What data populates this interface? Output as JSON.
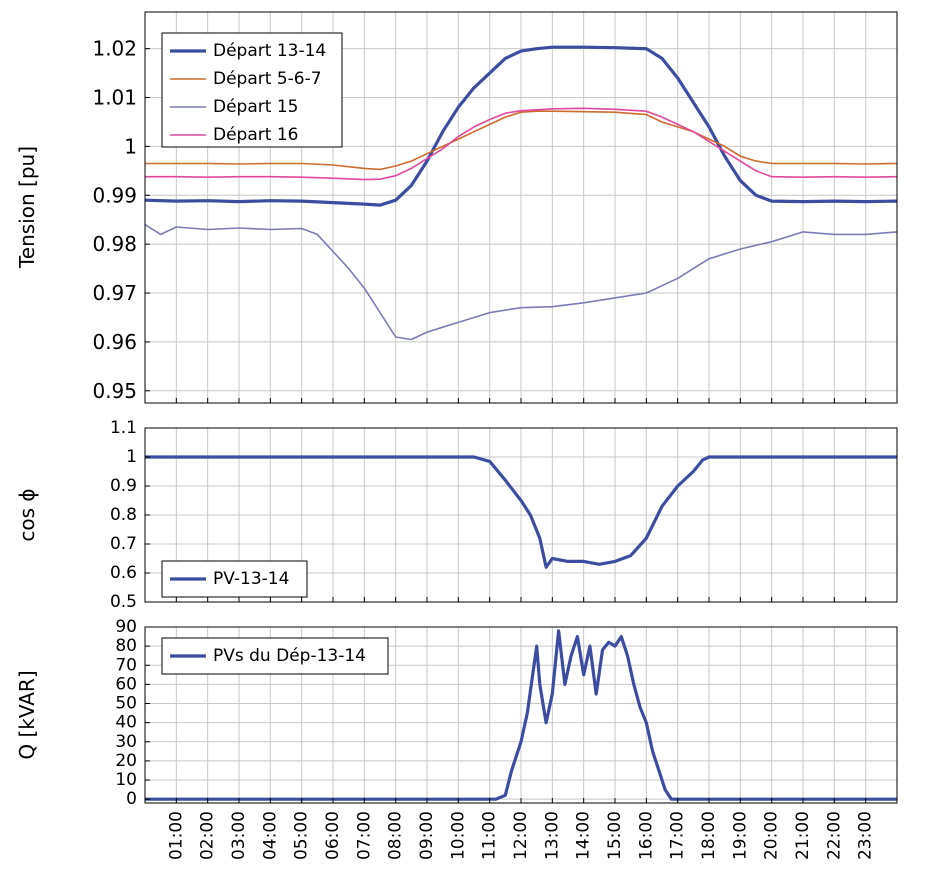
{
  "chart_data": [
    {
      "type": "line",
      "ylabel": "Tension [pu]",
      "xlabel": "",
      "xlim": [
        0,
        24
      ],
      "ylim": [
        0.9475,
        1.0275
      ],
      "yticks": [
        "0.95",
        "0.96",
        "0.97",
        "0.98",
        "0.99",
        "1",
        "1.01",
        "1.02"
      ],
      "ytick_values": [
        0.95,
        0.96,
        0.97,
        0.98,
        0.99,
        1,
        1.01,
        1.02
      ],
      "grid": true,
      "legend_position": "top-left",
      "series": [
        {
          "name": "Départ 13-14",
          "color": "#3b4da0",
          "thick": true,
          "x": [
            0,
            1,
            2,
            3,
            4,
            5,
            6,
            7,
            7.5,
            8,
            8.5,
            9,
            9.5,
            10,
            10.5,
            11,
            11.5,
            12,
            12.5,
            13,
            14,
            15,
            16,
            16.5,
            17,
            17.5,
            18,
            18.5,
            19,
            19.5,
            20,
            21,
            22,
            23,
            24
          ],
          "y": [
            0.989,
            0.9888,
            0.9889,
            0.9887,
            0.9889,
            0.9888,
            0.9885,
            0.9882,
            0.988,
            0.989,
            0.992,
            0.997,
            1.003,
            1.008,
            1.012,
            1.015,
            1.018,
            1.0195,
            1.02,
            1.0203,
            1.0203,
            1.0202,
            1.02,
            1.018,
            1.014,
            1.009,
            1.004,
            0.998,
            0.993,
            0.99,
            0.9888,
            0.9887,
            0.9888,
            0.9887,
            0.9888
          ]
        },
        {
          "name": "Départ 5-6-7",
          "color": "#cc6b2c",
          "thick": false,
          "x": [
            0,
            1,
            2,
            3,
            4,
            5,
            6,
            7,
            7.5,
            8,
            8.5,
            9,
            9.5,
            10,
            10.5,
            11,
            11.5,
            12,
            12.5,
            13,
            14,
            15,
            16,
            16.5,
            17,
            17.5,
            18,
            18.5,
            19,
            19.5,
            20,
            21,
            22,
            23,
            24
          ],
          "y": [
            0.9965,
            0.9965,
            0.9965,
            0.9964,
            0.9965,
            0.9965,
            0.9962,
            0.9955,
            0.9953,
            0.996,
            0.997,
            0.9985,
            1.0,
            1.0015,
            1.003,
            1.0045,
            1.006,
            1.007,
            1.0072,
            1.0072,
            1.0071,
            1.007,
            1.0065,
            1.005,
            1.004,
            1.003,
            1.0015,
            1.0,
            0.998,
            0.997,
            0.9965,
            0.9965,
            0.9965,
            0.9964,
            0.9965
          ]
        },
        {
          "name": "Départ 15",
          "color": "#7b7bb8",
          "thick": false,
          "x": [
            0,
            0.5,
            1,
            2,
            3,
            4,
            5,
            5.5,
            6,
            6.5,
            7,
            7.5,
            8,
            8.5,
            9,
            9.5,
            10,
            11,
            12,
            13,
            14,
            15,
            16,
            16.5,
            17,
            17.5,
            18,
            19,
            20,
            21,
            22,
            23,
            24
          ],
          "y": [
            0.984,
            0.982,
            0.9835,
            0.983,
            0.9833,
            0.983,
            0.9832,
            0.982,
            0.9785,
            0.975,
            0.971,
            0.966,
            0.961,
            0.9605,
            0.962,
            0.963,
            0.964,
            0.966,
            0.967,
            0.9672,
            0.968,
            0.969,
            0.97,
            0.9715,
            0.973,
            0.975,
            0.977,
            0.979,
            0.9805,
            0.9825,
            0.982,
            0.982,
            0.9825
          ]
        },
        {
          "name": "Départ 16",
          "color": "#e0479e",
          "thick": false,
          "x": [
            0,
            1,
            2,
            3,
            4,
            5,
            6,
            7,
            7.5,
            8,
            8.5,
            9,
            9.5,
            10,
            10.5,
            11,
            11.5,
            12,
            12.5,
            13,
            14,
            15,
            16,
            16.5,
            17,
            17.5,
            18,
            18.5,
            19,
            19.5,
            20,
            21,
            22,
            23,
            24
          ],
          "y": [
            0.9938,
            0.9938,
            0.9937,
            0.9938,
            0.9938,
            0.9937,
            0.9935,
            0.9932,
            0.9933,
            0.994,
            0.9955,
            0.9975,
            0.9995,
            1.002,
            1.004,
            1.0055,
            1.0068,
            1.0073,
            1.0075,
            1.0077,
            1.0078,
            1.0076,
            1.0072,
            1.006,
            1.0045,
            1.003,
            1.001,
            0.999,
            0.997,
            0.995,
            0.9938,
            0.9937,
            0.9938,
            0.9937,
            0.9938
          ]
        }
      ]
    },
    {
      "type": "line",
      "ylabel": "cos ϕ",
      "xlabel": "",
      "xlim": [
        0,
        24
      ],
      "ylim": [
        0.5,
        1.1
      ],
      "yticks": [
        "0.5",
        "0.6",
        "0.7",
        "0.8",
        "0.9",
        "1",
        "1.1"
      ],
      "ytick_values": [
        0.5,
        0.6,
        0.7,
        0.8,
        0.9,
        1,
        1.1
      ],
      "grid": true,
      "legend_position": "bottom-left",
      "series": [
        {
          "name": "PV-13-14",
          "color": "#3b4da0",
          "thick": true,
          "x": [
            0,
            5,
            10,
            10.5,
            11,
            11.5,
            12,
            12.3,
            12.6,
            12.8,
            13,
            13.5,
            14,
            14.5,
            15,
            15.5,
            16,
            16.5,
            17,
            17.5,
            17.8,
            18,
            24
          ],
          "y": [
            1,
            1,
            1,
            1,
            0.985,
            0.92,
            0.85,
            0.8,
            0.72,
            0.62,
            0.65,
            0.64,
            0.64,
            0.63,
            0.64,
            0.66,
            0.72,
            0.83,
            0.9,
            0.95,
            0.99,
            1,
            1
          ]
        }
      ]
    },
    {
      "type": "line",
      "ylabel": "Q [kVAR]",
      "xlabel": "",
      "xlim": [
        0,
        24
      ],
      "ylim": [
        -2,
        90
      ],
      "yticks": [
        "0",
        "10",
        "20",
        "30",
        "40",
        "50",
        "60",
        "70",
        "80",
        "90"
      ],
      "ytick_values": [
        0,
        10,
        20,
        30,
        40,
        50,
        60,
        70,
        80,
        90
      ],
      "grid": true,
      "legend_position": "top-left",
      "x_categories": [
        "01:00",
        "02:00",
        "03:00",
        "04:00",
        "05:00",
        "06:00",
        "07:00",
        "08:00",
        "09:00",
        "10:00",
        "11:00",
        "12:00",
        "13:00",
        "14:00",
        "15:00",
        "16:00",
        "17:00",
        "18:00",
        "19:00",
        "20:00",
        "21:00",
        "22:00",
        "23:00"
      ],
      "series": [
        {
          "name": "PVs du Dép-13-14",
          "color": "#3b4da0",
          "thick": true,
          "x": [
            0,
            5,
            10,
            11.2,
            11.5,
            11.7,
            12,
            12.2,
            12.5,
            12.6,
            12.8,
            13,
            13.2,
            13.4,
            13.6,
            13.8,
            14,
            14.2,
            14.4,
            14.6,
            14.8,
            15,
            15.2,
            15.4,
            15.6,
            15.8,
            16,
            16.2,
            16.4,
            16.6,
            16.8,
            17,
            24
          ],
          "y": [
            0,
            0,
            0,
            0,
            2,
            15,
            30,
            45,
            80,
            60,
            40,
            55,
            88,
            60,
            75,
            85,
            65,
            80,
            55,
            78,
            82,
            80,
            85,
            75,
            60,
            48,
            40,
            25,
            15,
            5,
            0,
            0,
            0
          ]
        }
      ]
    }
  ]
}
